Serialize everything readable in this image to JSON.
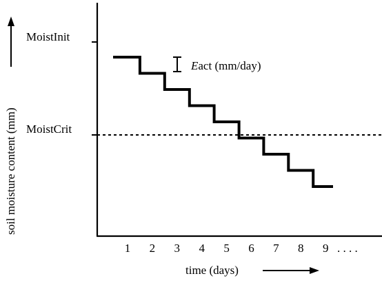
{
  "diagram": {
    "y_axis_label": "soil moisture content (mm)",
    "x_axis_label": "time (days)",
    "levels": {
      "moist_init": "MoistInit",
      "moist_crit": "MoistCrit"
    },
    "legend": {
      "symbol": "E",
      "rest": "act (mm/day)"
    },
    "x_ticks": [
      "1",
      "2",
      "3",
      "4",
      "5",
      "6",
      "7",
      "8",
      "9"
    ],
    "x_continuation": ". . . .",
    "staircase_days": [
      1,
      2,
      3,
      4,
      5,
      6,
      7,
      8,
      9
    ]
  }
}
